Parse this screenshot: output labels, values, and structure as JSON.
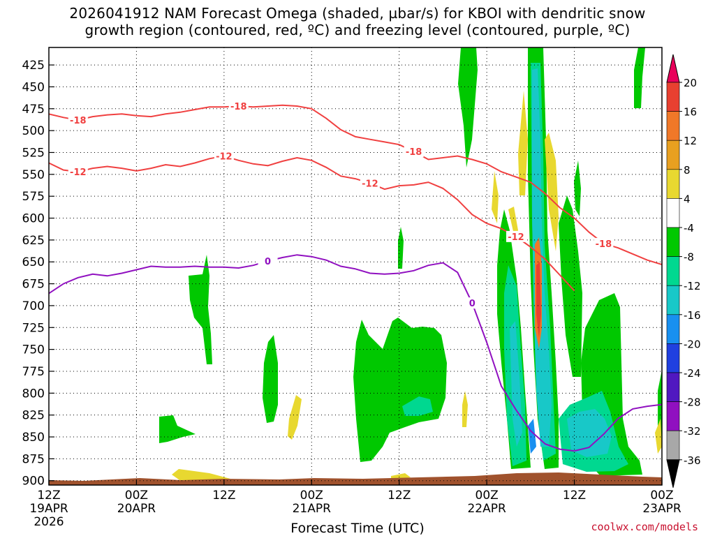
{
  "title_line1": "2026041912 NAM Forecast Omega (shaded, µbar/s) for KBOI with dendritic snow",
  "title_line2": "growth region (contoured, red, ºC) and freezing level (contoured, purple, ºC)",
  "xlabel": "Forecast Time (UTC)",
  "credit": "coolwx.com/models",
  "chart_data": {
    "type": "heatmap",
    "y_axis": {
      "unit": "hPa",
      "ticks": [
        425,
        450,
        475,
        500,
        525,
        550,
        575,
        600,
        625,
        650,
        675,
        700,
        725,
        750,
        775,
        800,
        825,
        850,
        875,
        900
      ],
      "ylim": [
        405,
        905
      ]
    },
    "x_axis": {
      "xlim": [
        "2026-04-19 12Z",
        "2026-04-23 00Z"
      ],
      "ticks": [
        {
          "label": "12Z",
          "sub": "19APR",
          "year": "2026"
        },
        {
          "label": "00Z",
          "sub": "20APR"
        },
        {
          "label": "12Z"
        },
        {
          "label": "00Z",
          "sub": "21APR"
        },
        {
          "label": "12Z"
        },
        {
          "label": "00Z",
          "sub": "22APR"
        },
        {
          "label": "12Z"
        },
        {
          "label": "00Z",
          "sub": "23APR"
        }
      ]
    },
    "colorbar": {
      "labels": [
        "20",
        "16",
        "12",
        "8",
        "4",
        "-4",
        "-8",
        "-12",
        "-16",
        "-20",
        "-24",
        "-28",
        "-32",
        "-36"
      ],
      "colors": [
        "#e8005a",
        "#e84030",
        "#f07828",
        "#e8a020",
        "#e8d830",
        "#ffffff",
        "#00c800",
        "#00d890",
        "#18c8c8",
        "#1890f0",
        "#2040e0",
        "#5018c0",
        "#9010c0",
        "#a8a8a8",
        "#000000"
      ]
    },
    "contours": [
      {
        "label": "-18",
        "color": "#f04040",
        "points": [
          [
            0,
            481
          ],
          [
            2,
            485
          ],
          [
            4,
            488
          ],
          [
            6,
            484
          ],
          [
            8,
            482
          ],
          [
            10,
            481
          ],
          [
            12,
            483
          ],
          [
            14,
            484
          ],
          [
            16,
            481
          ],
          [
            18,
            479
          ],
          [
            20,
            476
          ],
          [
            22,
            473
          ],
          [
            24,
            473
          ],
          [
            26,
            472
          ],
          [
            28,
            473
          ],
          [
            30,
            472
          ],
          [
            32,
            471
          ],
          [
            34,
            472
          ],
          [
            36,
            475
          ],
          [
            38,
            486
          ],
          [
            40,
            499
          ],
          [
            42,
            507
          ],
          [
            44,
            510
          ],
          [
            46,
            513
          ],
          [
            48,
            516
          ],
          [
            50,
            524
          ],
          [
            52,
            533
          ],
          [
            54,
            531
          ],
          [
            56,
            529
          ],
          [
            58,
            533
          ],
          [
            60,
            538
          ],
          [
            62,
            547
          ],
          [
            64,
            553
          ],
          [
            66,
            559
          ],
          [
            68,
            572
          ],
          [
            70,
            588
          ],
          [
            72,
            600
          ],
          [
            74,
            616
          ],
          [
            76,
            629
          ],
          [
            78,
            634
          ],
          [
            80,
            641
          ],
          [
            82,
            648
          ],
          [
            84,
            653
          ]
        ]
      },
      {
        "label": "-12",
        "color": "#f04040",
        "points": [
          [
            0,
            537
          ],
          [
            2,
            545
          ],
          [
            4,
            547
          ],
          [
            6,
            543
          ],
          [
            8,
            541
          ],
          [
            10,
            543
          ],
          [
            12,
            546
          ],
          [
            14,
            543
          ],
          [
            16,
            539
          ],
          [
            18,
            541
          ],
          [
            20,
            537
          ],
          [
            22,
            532
          ],
          [
            24,
            529
          ],
          [
            26,
            534
          ],
          [
            28,
            538
          ],
          [
            30,
            540
          ],
          [
            32,
            535
          ],
          [
            34,
            531
          ],
          [
            36,
            534
          ],
          [
            38,
            542
          ],
          [
            40,
            552
          ],
          [
            42,
            555
          ],
          [
            44,
            560
          ],
          [
            46,
            567
          ],
          [
            48,
            563
          ],
          [
            50,
            562
          ],
          [
            52,
            559
          ],
          [
            54,
            566
          ],
          [
            56,
            579
          ],
          [
            58,
            596
          ],
          [
            60,
            606
          ],
          [
            62,
            612
          ],
          [
            64,
            621
          ],
          [
            66,
            633
          ],
          [
            68,
            647
          ],
          [
            70,
            665
          ],
          [
            72,
            683
          ]
        ]
      },
      {
        "label": "0",
        "color": "#9010c0",
        "points": [
          [
            0,
            686
          ],
          [
            2,
            675
          ],
          [
            4,
            668
          ],
          [
            6,
            664
          ],
          [
            8,
            666
          ],
          [
            10,
            663
          ],
          [
            12,
            659
          ],
          [
            14,
            655
          ],
          [
            16,
            656
          ],
          [
            18,
            656
          ],
          [
            20,
            655
          ],
          [
            22,
            656
          ],
          [
            24,
            656
          ],
          [
            26,
            657
          ],
          [
            28,
            654
          ],
          [
            30,
            649
          ],
          [
            32,
            645
          ],
          [
            34,
            642
          ],
          [
            36,
            644
          ],
          [
            38,
            648
          ],
          [
            40,
            655
          ],
          [
            42,
            658
          ],
          [
            44,
            663
          ],
          [
            46,
            664
          ],
          [
            48,
            663
          ],
          [
            50,
            660
          ],
          [
            52,
            654
          ],
          [
            54,
            651
          ],
          [
            56,
            662
          ],
          [
            58,
            697
          ],
          [
            60,
            742
          ],
          [
            62,
            792
          ],
          [
            64,
            819
          ],
          [
            66,
            843
          ],
          [
            68,
            858
          ],
          [
            70,
            864
          ],
          [
            72,
            866
          ],
          [
            74,
            862
          ],
          [
            76,
            847
          ],
          [
            78,
            829
          ],
          [
            80,
            818
          ],
          [
            82,
            815
          ],
          [
            84,
            813
          ]
        ]
      }
    ]
  }
}
